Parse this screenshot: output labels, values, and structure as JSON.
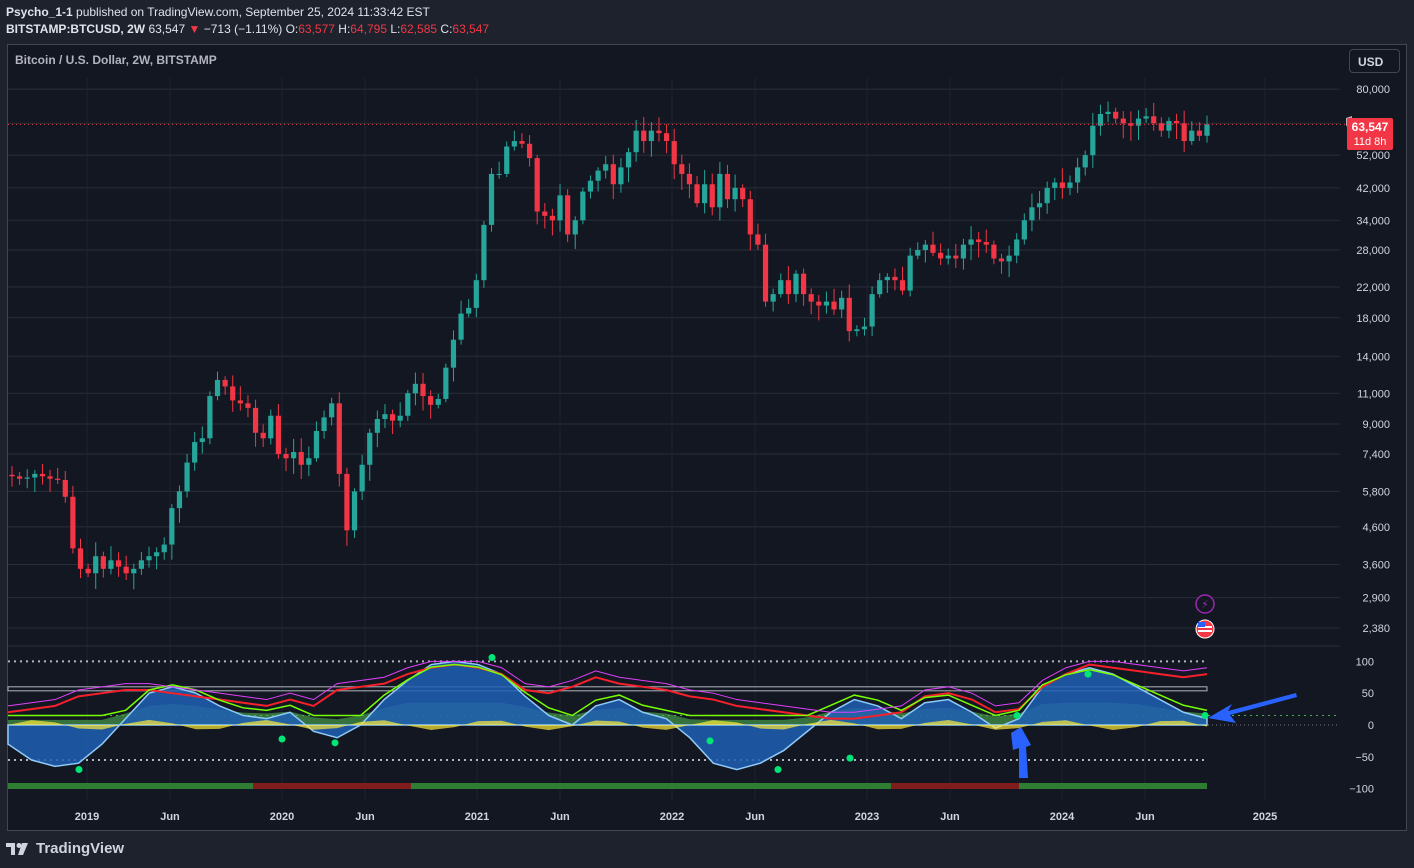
{
  "header": {
    "author": "Psycho_1-1",
    "published_text": " published on TradingView.com, September 25, 2024 11:33:42 EST",
    "symbol": "BITSTAMP:BTCUSD, 2W",
    "last": "63,547",
    "change": "−713 (−1.11%)",
    "o_label": "O:",
    "o_value": "63,577",
    "h_label": "H:",
    "h_value": "64,795",
    "l_label": "L:",
    "l_value": "62,585",
    "c_label": "C:",
    "c_value": "63,547"
  },
  "chart_title": "Bitcoin / U.S. Dollar, 2W, BITSTAMP",
  "currency_button": "USD",
  "last_price_tag": {
    "price": "63,547",
    "countdown": "11d 8h"
  },
  "footer": {
    "logo_text": "TradingView"
  },
  "colors": {
    "up": "#26a69a",
    "down": "#f23645",
    "background": "#131722",
    "osc_blue": "#2962ff",
    "osc_green": "#4caf50",
    "osc_yellow": "#ffeb3b",
    "wave_red": "#f7202a",
    "wave_lime": "#76ff03",
    "magenta": "#e040fb"
  },
  "chart_data": [
    {
      "type": "candlestick",
      "title": "Bitcoin / U.S. Dollar, 2W, BITSTAMP",
      "y_scale": "log",
      "ylim": [
        2200,
        86000
      ],
      "y_ticks": [
        80000,
        64000,
        52000,
        42000,
        34000,
        28000,
        22000,
        18000,
        14000,
        11000,
        9000,
        7400,
        5800,
        4600,
        3600,
        2900,
        2380
      ],
      "y_tick_labels": [
        "80,000",
        "64,000",
        "52,000",
        "42,000",
        "34,000",
        "28,000",
        "22,000",
        "18,000",
        "14,000",
        "11,000",
        "9,000",
        "7,400",
        "5,800",
        "4,600",
        "3,600",
        "2,900",
        "2,380"
      ],
      "x_ticks": [
        "2019",
        "Jun",
        "2020",
        "Jun",
        "2021",
        "Jun",
        "2022",
        "Jun",
        "2023",
        "Jun",
        "2024",
        "Jun",
        "2025"
      ],
      "last_price": 63547,
      "close_path": [
        6400,
        6300,
        6350,
        6500,
        6400,
        6300,
        6250,
        5600,
        4000,
        3500,
        3400,
        3800,
        3500,
        3700,
        3550,
        3400,
        3500,
        3700,
        3800,
        3900,
        4100,
        5200,
        5800,
        7000,
        8000,
        8200,
        10800,
        12000,
        11500,
        10500,
        10300,
        10000,
        8500,
        8200,
        9500,
        7400,
        7200,
        7500,
        6900,
        7200,
        8600,
        9400,
        10300,
        6500,
        4500,
        5800,
        6900,
        8500,
        9300,
        9600,
        9200,
        9500,
        11000,
        11700,
        10800,
        10200,
        10600,
        13000,
        15600,
        18500,
        19200,
        23000,
        33000,
        46000,
        46000,
        55000,
        57000,
        56000,
        51000,
        36000,
        35000,
        34000,
        40000,
        31000,
        34000,
        41000,
        44000,
        47000,
        49000,
        43000,
        48000,
        53000,
        61000,
        57000,
        61000,
        60000,
        57000,
        49000,
        46000,
        43000,
        38000,
        43000,
        37000,
        46000,
        39000,
        42000,
        39000,
        31000,
        29000,
        20000,
        21000,
        23000,
        21000,
        24000,
        21000,
        20000,
        19500,
        20000,
        19000,
        20500,
        16500,
        16700,
        17000,
        21000,
        23000,
        23500,
        23000,
        21500,
        27000,
        28000,
        29000,
        27500,
        26500,
        27000,
        26500,
        29000,
        30000,
        29500,
        29000,
        26500,
        26000,
        27000,
        30000,
        34000,
        37000,
        38000,
        42000,
        43500,
        42000,
        43500,
        48000,
        52000,
        63000,
        68000,
        69000,
        66000,
        64000,
        63000,
        66000,
        67000,
        64000,
        61000,
        65000,
        64000,
        57000,
        61000,
        59000,
        63547
      ],
      "oscillator": {
        "ylim": [
          -110,
          110
        ],
        "y_ticks": [
          100,
          50,
          0,
          -50,
          -100
        ],
        "y_tick_labels": [
          "100",
          "50",
          "0",
          "−50",
          "−100"
        ],
        "levels": [
          100,
          60,
          15,
          -55
        ],
        "blue_wave": [
          -30,
          -55,
          -65,
          -60,
          -30,
          10,
          50,
          60,
          50,
          30,
          15,
          10,
          20,
          -10,
          -20,
          0,
          40,
          70,
          95,
          100,
          95,
          80,
          45,
          15,
          0,
          30,
          40,
          20,
          10,
          -20,
          -60,
          -70,
          -60,
          -40,
          -10,
          20,
          40,
          30,
          10,
          35,
          40,
          20,
          -5,
          10,
          60,
          80,
          90,
          80,
          60,
          40,
          20,
          10
        ],
        "red_line": [
          20,
          25,
          30,
          45,
          50,
          55,
          55,
          50,
          45,
          40,
          35,
          30,
          40,
          30,
          55,
          60,
          65,
          80,
          90,
          95,
          90,
          80,
          55,
          50,
          60,
          75,
          65,
          60,
          55,
          45,
          40,
          30,
          25,
          20,
          15,
          10,
          10,
          15,
          20,
          45,
          50,
          40,
          20,
          25,
          60,
          80,
          95,
          90,
          85,
          80,
          75,
          80
        ],
        "bottom_bar_segments": [
          "green",
          "red",
          "green",
          "red",
          "green"
        ]
      }
    }
  ]
}
